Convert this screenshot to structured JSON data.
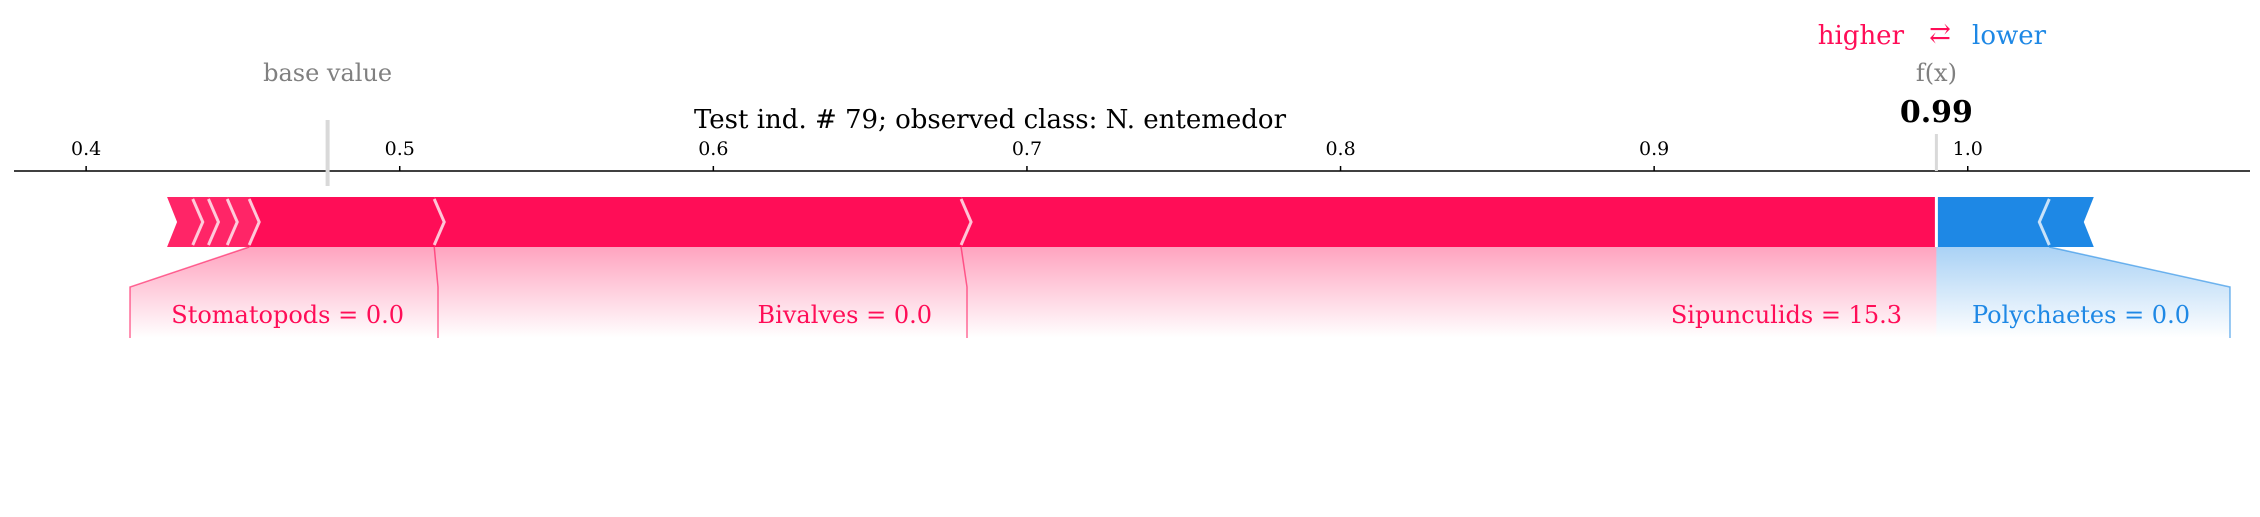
{
  "legend": {
    "higher_label": "higher",
    "arrow_symbol": "⇄",
    "lower_label": "lower"
  },
  "labels": {
    "base_value_label": "base value",
    "fx_label": "f(x)",
    "fx_value_text": "0.99"
  },
  "colors": {
    "positive": "#ff0d57",
    "negative": "#1e88e5"
  },
  "chart_data": {
    "type": "force",
    "title": "Test ind. #  79; observed class: N. entemedor",
    "xlim": [
      0.377,
      1.09
    ],
    "ticks": [
      0.4,
      0.5,
      0.6,
      0.7,
      0.8,
      0.9,
      1.0
    ],
    "tick_labels": [
      "0.4",
      "0.5",
      "0.6",
      "0.7",
      "0.8",
      "0.9",
      "1.0"
    ],
    "base_value": 0.477,
    "output_value": 0.99,
    "positive_features": [
      {
        "label": "Sipunculids = 15.3",
        "start": 0.679,
        "end": 0.99
      },
      {
        "label": "Bivalves = 0.0",
        "start": 0.511,
        "end": 0.679
      },
      {
        "label": "Stomatopods = 0.0",
        "start": 0.452,
        "end": 0.511
      },
      {
        "label": "",
        "start": 0.445,
        "end": 0.452
      },
      {
        "label": "",
        "start": 0.439,
        "end": 0.445
      },
      {
        "label": "",
        "start": 0.434,
        "end": 0.439
      },
      {
        "label": "",
        "start": 0.429,
        "end": 0.434
      }
    ],
    "negative_features": [
      {
        "label": "Polychaetes = 0.0",
        "start": 0.99,
        "end": 1.026
      },
      {
        "label": "",
        "start": 1.026,
        "end": 1.037
      }
    ]
  }
}
